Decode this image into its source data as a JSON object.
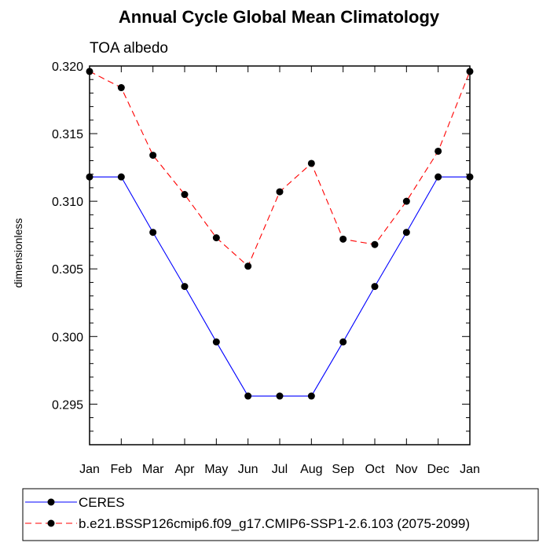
{
  "chart_data": {
    "type": "line",
    "title": "Annual Cycle Global Mean Climatology",
    "subtitle": "TOA albedo",
    "ylabel": "dimensionless",
    "xlabel": "",
    "categories": [
      "Jan",
      "Feb",
      "Mar",
      "Apr",
      "May",
      "Jun",
      "Jul",
      "Aug",
      "Sep",
      "Oct",
      "Nov",
      "Dec",
      "Jan"
    ],
    "ylim": [
      0.292,
      0.32
    ],
    "yticks": [
      "0.295",
      "0.300",
      "0.305",
      "0.310",
      "0.315",
      "0.320"
    ],
    "series": [
      {
        "name": "CERES",
        "color": "#0000ff",
        "dashed": false,
        "values": [
          0.3118,
          0.3118,
          0.3077,
          0.3037,
          0.2996,
          0.2956,
          0.2956,
          0.2956,
          0.2996,
          0.3037,
          0.3077,
          0.3118,
          0.3118
        ]
      },
      {
        "name": "b.e21.BSSP126cmip6.f09_g17.CMIP6-SSP1-2.6.103 (2075-2099)",
        "color": "#ff0000",
        "dashed": true,
        "values": [
          0.3196,
          0.3184,
          0.3134,
          0.3105,
          0.3073,
          0.3052,
          0.3107,
          0.3128,
          0.3072,
          0.3068,
          0.31,
          0.3137,
          0.3196
        ]
      }
    ],
    "legend_position": "bottom-left"
  }
}
